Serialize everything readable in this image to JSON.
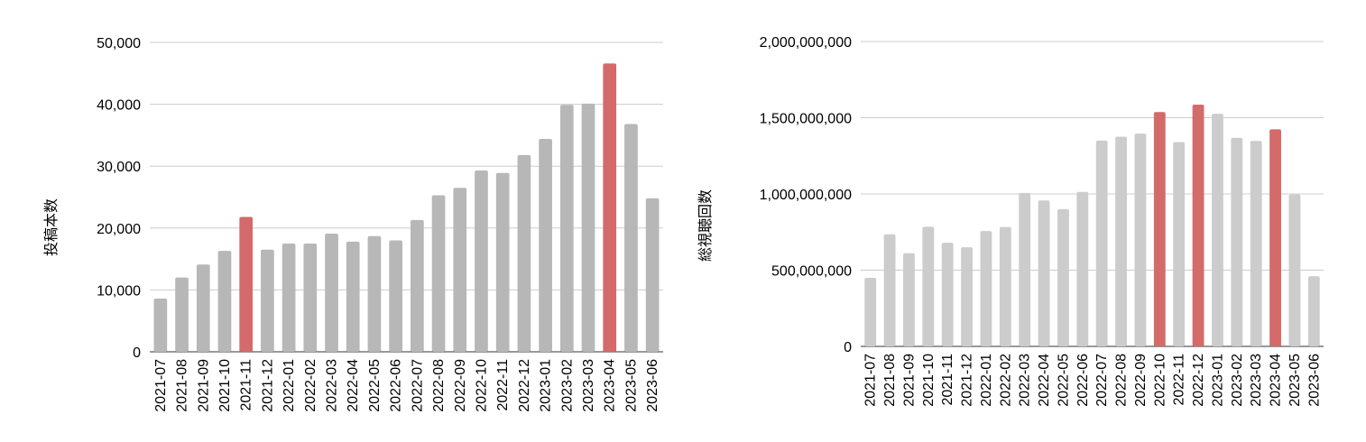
{
  "chart_data": [
    {
      "type": "bar",
      "title": "",
      "xlabel": "",
      "ylabel": "投稿本数",
      "ylim": [
        0,
        50000
      ],
      "yticks": [
        0,
        10000,
        20000,
        30000,
        40000,
        50000
      ],
      "ytick_labels": [
        "0",
        "10,000",
        "20,000",
        "30,000",
        "40,000",
        "50,000"
      ],
      "grid": true,
      "categories": [
        "2021-07",
        "2021-08",
        "2021-09",
        "2021-10",
        "2021-11",
        "2021-12",
        "2022-01",
        "2022-02",
        "2022-03",
        "2022-04",
        "2022-05",
        "2022-06",
        "2022-07",
        "2022-08",
        "2022-09",
        "2022-10",
        "2022-11",
        "2022-12",
        "2023-01",
        "2023-02",
        "2023-03",
        "2023-04",
        "2023-05",
        "2023-06"
      ],
      "values": [
        8600,
        12000,
        14100,
        16300,
        21800,
        16500,
        17500,
        17500,
        19100,
        17800,
        18700,
        18000,
        21300,
        25300,
        26500,
        29300,
        28900,
        31800,
        34400,
        39900,
        40100,
        46600,
        36800,
        24800
      ],
      "highlight": [
        "2021-11",
        "2023-04"
      ],
      "bar_color": "#b7b7b7",
      "highlight_color": "#d46a6a"
    },
    {
      "type": "bar",
      "title": "",
      "xlabel": "",
      "ylabel": "総視聴回数",
      "ylim": [
        0,
        2000000000
      ],
      "yticks": [
        0,
        500000000,
        1000000000,
        1500000000,
        2000000000
      ],
      "ytick_labels": [
        "0",
        "500,000,000",
        "1,000,000,000",
        "1,500,000,000",
        "2,000,000,000"
      ],
      "grid": true,
      "categories": [
        "2021-07",
        "2021-08",
        "2021-09",
        "2021-10",
        "2021-11",
        "2021-12",
        "2022-01",
        "2022-02",
        "2022-03",
        "2022-04",
        "2022-05",
        "2022-06",
        "2022-07",
        "2022-08",
        "2022-09",
        "2022-10",
        "2022-11",
        "2022-12",
        "2023-01",
        "2023-02",
        "2023-03",
        "2023-04",
        "2023-05",
        "2023-06"
      ],
      "values": [
        450000000,
        735000000,
        612000000,
        785000000,
        680000000,
        650000000,
        757000000,
        783000000,
        1007000000,
        957000000,
        900000000,
        1013000000,
        1350000000,
        1376000000,
        1396000000,
        1537000000,
        1340000000,
        1586000000,
        1526000000,
        1368000000,
        1348000000,
        1424000000,
        996000000,
        460000000
      ],
      "highlight": [
        "2022-10",
        "2022-12",
        "2023-04"
      ],
      "bar_color": "#cccccc",
      "highlight_color": "#d46a6a"
    }
  ]
}
